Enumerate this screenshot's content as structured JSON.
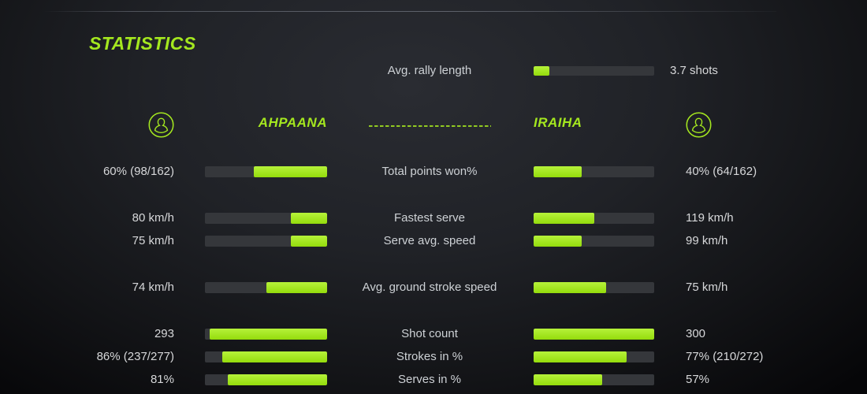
{
  "title": "STATISTICS",
  "colors": {
    "accent": "#a4e71f",
    "track": "#35373b"
  },
  "rally": {
    "label": "Avg. rally length",
    "value": "3.7 shots",
    "fill_pct": 13
  },
  "players": {
    "left": {
      "name": "AHPAANA",
      "icon": "user-icon"
    },
    "right": {
      "name": "IRAIHA",
      "icon": "user-icon"
    }
  },
  "stats": [
    {
      "label": "Total points won%",
      "left": {
        "value": "60% (98/162)",
        "fill_pct": 60
      },
      "right": {
        "value": "40% (64/162)",
        "fill_pct": 40
      }
    },
    {
      "label": "Fastest serve",
      "left": {
        "value": "80 km/h",
        "fill_pct": 30
      },
      "right": {
        "value": "119 km/h",
        "fill_pct": 50
      }
    },
    {
      "label": "Serve avg. speed",
      "left": {
        "value": "75 km/h",
        "fill_pct": 30
      },
      "right": {
        "value": "99 km/h",
        "fill_pct": 40
      }
    },
    {
      "label": "Avg. ground stroke speed",
      "left": {
        "value": "74 km/h",
        "fill_pct": 50
      },
      "right": {
        "value": "75 km/h",
        "fill_pct": 60
      }
    },
    {
      "label": "Shot count",
      "left": {
        "value": "293",
        "fill_pct": 96
      },
      "right": {
        "value": "300",
        "fill_pct": 100
      }
    },
    {
      "label": "Strokes in %",
      "left": {
        "value": "86% (237/277)",
        "fill_pct": 86
      },
      "right": {
        "value": "77% (210/272)",
        "fill_pct": 77
      }
    },
    {
      "label": "Serves in %",
      "left": {
        "value": "81%",
        "fill_pct": 81
      },
      "right": {
        "value": "57%",
        "fill_pct": 57
      }
    }
  ]
}
